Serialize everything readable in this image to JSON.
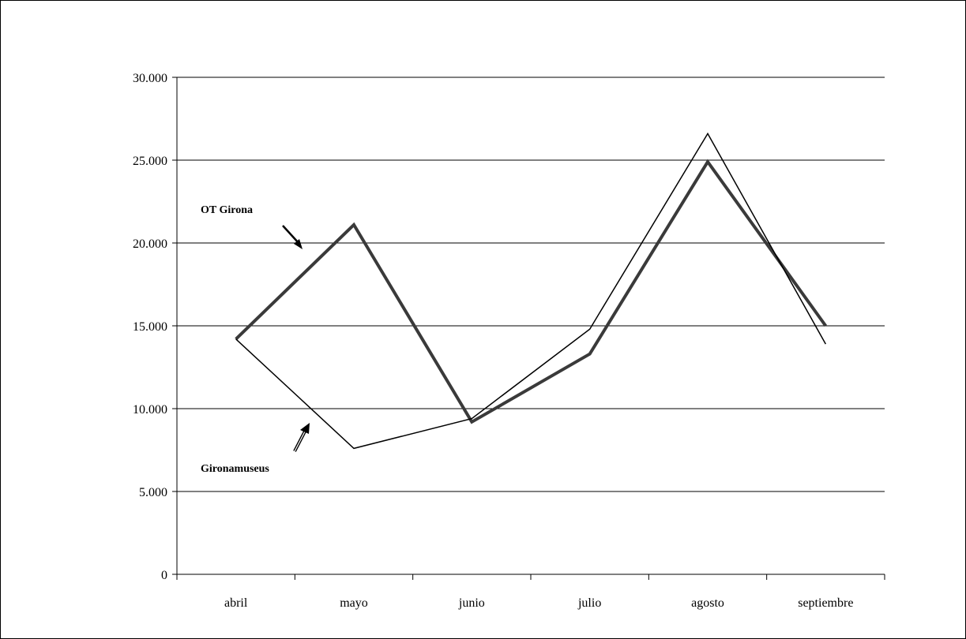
{
  "chart_data": {
    "type": "line",
    "title": "",
    "xlabel": "",
    "ylabel": "",
    "categories": [
      "abril",
      "mayo",
      "junio",
      "julio",
      "agosto",
      "septiembre"
    ],
    "y_ticks": [
      "0",
      "5.000",
      "10.000",
      "15.000",
      "20.000",
      "25.000",
      "30.000"
    ],
    "ylim": [
      0,
      30000
    ],
    "grid": true,
    "legend": "none",
    "series": [
      {
        "name": "OT Girona",
        "style": "thick",
        "color": "#3a3a3a",
        "values": [
          14200,
          21100,
          9200,
          13300,
          24900,
          15000
        ]
      },
      {
        "name": "Gironamuseus",
        "style": "thin",
        "color": "#000000",
        "values": [
          14200,
          7600,
          9400,
          14800,
          26600,
          13900
        ]
      }
    ],
    "annotations": [
      {
        "text": "OT Girona",
        "points_to": "OT Girona"
      },
      {
        "text": "Gironamuseus",
        "points_to": "Gironamuseus"
      }
    ]
  }
}
